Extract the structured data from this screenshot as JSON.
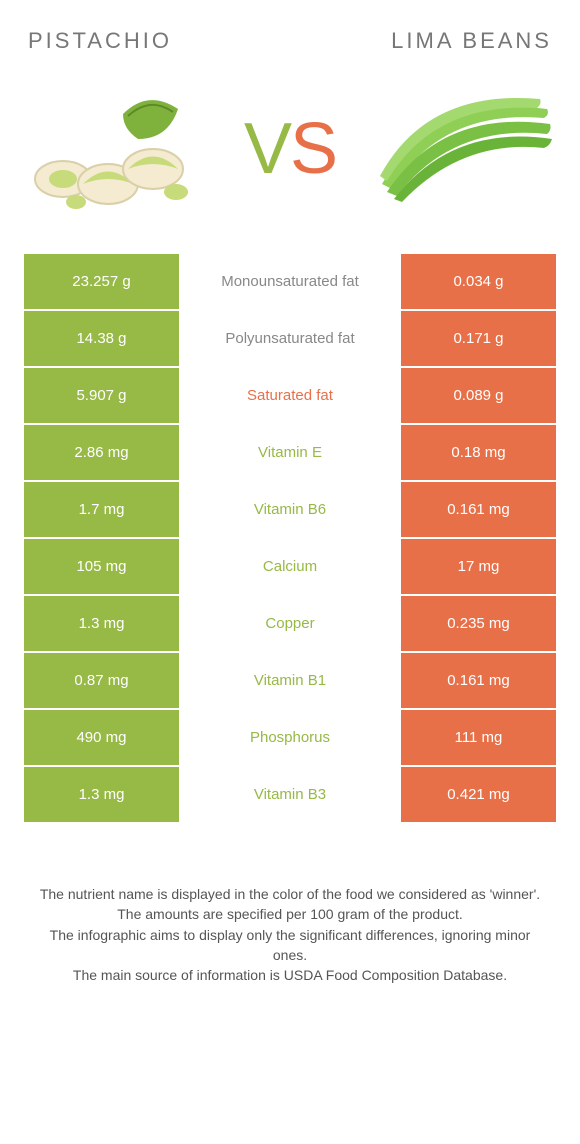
{
  "left_title": "Pistachio",
  "right_title": "Lima beans",
  "vs_v": "V",
  "vs_s": "S",
  "colors": {
    "left_bg": "#97b946",
    "right_bg": "#e77049",
    "left_text": "#97b946",
    "right_text": "#e77049",
    "mid_text_default": "#888888"
  },
  "rows": [
    {
      "left": "23.257 g",
      "mid": "Monounsaturated fat",
      "right": "0.034 g",
      "winner": "none"
    },
    {
      "left": "14.38 g",
      "mid": "Polyunsaturated fat",
      "right": "0.171 g",
      "winner": "none"
    },
    {
      "left": "5.907 g",
      "mid": "Saturated fat",
      "right": "0.089 g",
      "winner": "right"
    },
    {
      "left": "2.86 mg",
      "mid": "Vitamin E",
      "right": "0.18 mg",
      "winner": "left"
    },
    {
      "left": "1.7 mg",
      "mid": "Vitamin B6",
      "right": "0.161 mg",
      "winner": "left"
    },
    {
      "left": "105 mg",
      "mid": "Calcium",
      "right": "17 mg",
      "winner": "left"
    },
    {
      "left": "1.3 mg",
      "mid": "Copper",
      "right": "0.235 mg",
      "winner": "left"
    },
    {
      "left": "0.87 mg",
      "mid": "Vitamin B1",
      "right": "0.161 mg",
      "winner": "left"
    },
    {
      "left": "490 mg",
      "mid": "Phosphorus",
      "right": "111 mg",
      "winner": "left"
    },
    {
      "left": "1.3 mg",
      "mid": "Vitamin B3",
      "right": "0.421 mg",
      "winner": "left"
    }
  ],
  "footer_lines": [
    "The nutrient name is displayed in the color of the food we considered as 'winner'.",
    "The amounts are specified per 100 gram of the product.",
    "The infographic aims to display only the significant differences, ignoring minor ones.",
    "The main source of information is USDA Food Composition Database."
  ]
}
